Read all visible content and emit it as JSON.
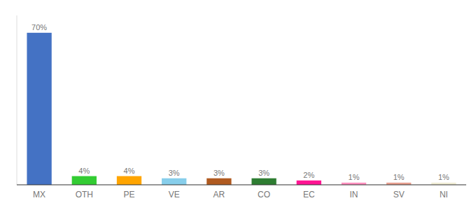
{
  "chart_data": {
    "type": "bar",
    "categories": [
      "MX",
      "OTH",
      "PE",
      "VE",
      "AR",
      "CO",
      "EC",
      "IN",
      "SV",
      "NI"
    ],
    "values": [
      70,
      4,
      4,
      3,
      3,
      3,
      2,
      1,
      1,
      1
    ],
    "value_labels": [
      "70%",
      "4%",
      "4%",
      "3%",
      "3%",
      "3%",
      "2%",
      "1%",
      "1%",
      "1%"
    ],
    "colors": [
      "#4472C4",
      "#33CC33",
      "#FFA500",
      "#87CEEB",
      "#B05A20",
      "#2E7D32",
      "#FF1493",
      "#FF91C0",
      "#E8A090",
      "#F0EDD5"
    ],
    "ylim": [
      0,
      78
    ],
    "grid": false,
    "data_labels": true,
    "tick_labels": "x"
  }
}
